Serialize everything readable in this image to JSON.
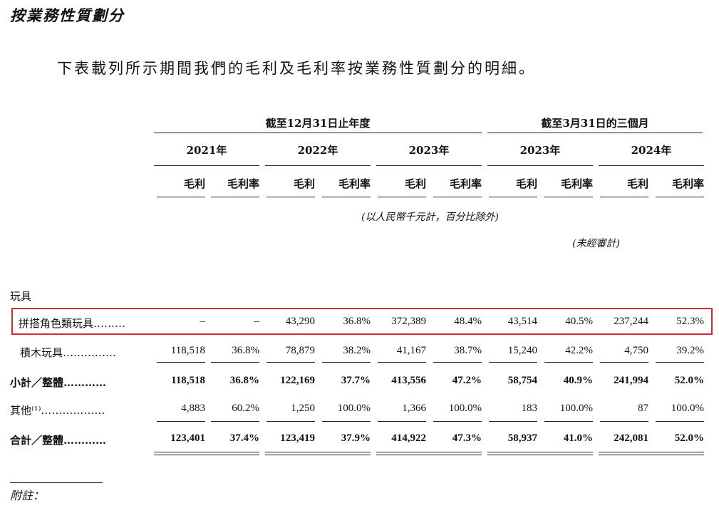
{
  "heading": "按業務性質劃分",
  "intro": "下表載列所示期間我們的毛利及毛利率按業務性質劃分的明細。",
  "groups": {
    "annual": "截至12月31日止年度",
    "quarter": "截至3月31日的三個月"
  },
  "years": [
    "2021年",
    "2022年",
    "2023年",
    "2023年",
    "2024年"
  ],
  "col_labels": [
    "毛利",
    "毛利率",
    "毛利",
    "毛利率",
    "毛利",
    "毛利率",
    "毛利",
    "毛利率",
    "毛利",
    "毛利率"
  ],
  "unit_note": "(以人民幣千元計，百分比除外)",
  "unaudited_note": "(未經審計)",
  "section_label": "玩具",
  "rows": [
    {
      "label": "拼搭角色類玩具………",
      "bold": false,
      "highlight": true,
      "values": [
        "–",
        "–",
        "43,290",
        "36.8%",
        "372,389",
        "48.4%",
        "43,514",
        "40.5%",
        "237,244",
        "52.3%"
      ]
    },
    {
      "label": "積木玩具……………",
      "bold": false,
      "highlight": false,
      "values": [
        "118,518",
        "36.8%",
        "78,879",
        "38.2%",
        "41,167",
        "38.7%",
        "15,240",
        "42.2%",
        "4,750",
        "39.2%"
      ]
    },
    {
      "label": "小計／整體…………",
      "bold": true,
      "highlight": false,
      "values": [
        "118,518",
        "36.8%",
        "122,169",
        "37.7%",
        "413,556",
        "47.2%",
        "58,754",
        "40.9%",
        "241,994",
        "52.0%"
      ]
    },
    {
      "label": "其他⁽¹⁾………………",
      "bold": false,
      "highlight": false,
      "values": [
        "4,883",
        "60.2%",
        "1,250",
        "100.0%",
        "1,366",
        "100.0%",
        "183",
        "100.0%",
        "87",
        "100.0%"
      ]
    },
    {
      "label": "合計／整體…………",
      "bold": true,
      "highlight": false,
      "values": [
        "123,401",
        "37.4%",
        "123,419",
        "37.9%",
        "414,922",
        "47.3%",
        "58,937",
        "41.0%",
        "242,081",
        "52.0%"
      ]
    }
  ],
  "footnote": "附註："
}
